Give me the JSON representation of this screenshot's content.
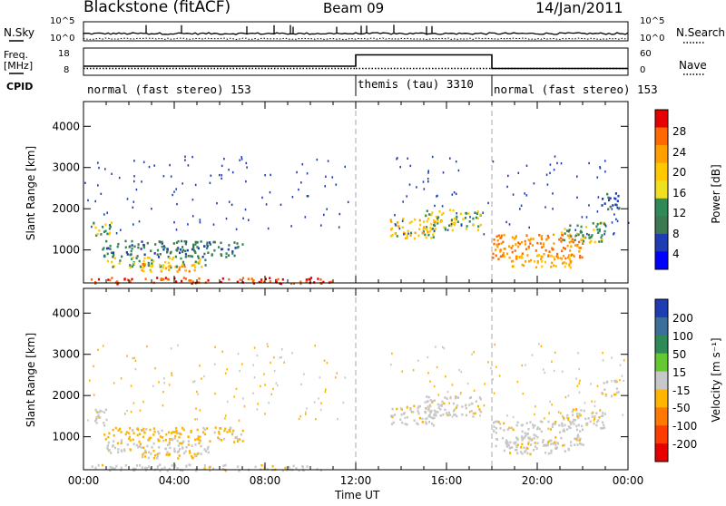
{
  "header": {
    "site": "Blackstone (fitACF)",
    "beam": "Beam 09",
    "date": "14/Jan/2011"
  },
  "top_panels": {
    "nsky_label": "N.Sky",
    "nsky_ticks": [
      "10^5",
      "10^0"
    ],
    "nsearch_label": "N.Search",
    "nsearch_ticks": [
      "10^5",
      "10^0"
    ],
    "freq_label": "Freq.",
    "freq_unit": "[MHz]",
    "freq_ticks": [
      "18",
      "8"
    ],
    "nave_label": "Nave",
    "nave_ticks": [
      "60",
      "0"
    ],
    "cpid_label": "CPID",
    "cpid_segments": [
      {
        "start_h": 0,
        "end_h": 12,
        "label": "normal (fast stereo) 153"
      },
      {
        "start_h": 12,
        "end_h": 18,
        "label": "themis (tau) 3310"
      },
      {
        "start_h": 18,
        "end_h": 24,
        "label": "normal (fast stereo) 153"
      }
    ]
  },
  "panels": {
    "power": {
      "ylabel": "Slant Range [km]",
      "cbar_label": "Power [dB]",
      "cbar_ticks": [
        "28",
        "24",
        "20",
        "16",
        "12",
        "8",
        "4"
      ],
      "cbar_colors": [
        "#e60000",
        "#ff6a00",
        "#ffa000",
        "#ffc800",
        "#f0e020",
        "#2e8b57",
        "#3c7850",
        "#1e3cb4",
        "#0000ff"
      ]
    },
    "velocity": {
      "ylabel": "Slant Range [km]",
      "cbar_label": "Velocity [m s⁻¹]",
      "cbar_ticks": [
        "200",
        "100",
        "50",
        "15",
        "-15",
        "-50",
        "-100",
        "-200"
      ],
      "cbar_colors": [
        "#1e3cb4",
        "#3c6e9c",
        "#2e8b57",
        "#64c832",
        "#c8c8c8",
        "#ffb400",
        "#ff7800",
        "#ff3c00",
        "#e60000"
      ],
      "ground_scatter_color": "#c8c8c8"
    }
  },
  "x_axis": {
    "label": "Time UT",
    "ticks": [
      "00:00",
      "04:00",
      "08:00",
      "12:00",
      "16:00",
      "20:00",
      "00:00"
    ]
  },
  "chart_data": {
    "type": "heatmap",
    "x_unit": "hours UT",
    "xlim": [
      0,
      24
    ],
    "ylim": [
      200,
      4600
    ],
    "y_ticks": [
      1000,
      2000,
      3000,
      4000
    ],
    "x_ticks": [
      0,
      4,
      8,
      12,
      16,
      20,
      24
    ],
    "mode_boundaries_h": [
      12,
      18
    ],
    "freq_MHz": [
      {
        "start_h": 0,
        "end_h": 12,
        "value": 10.5
      },
      {
        "start_h": 12,
        "end_h": 18,
        "value": 10.5
      },
      {
        "start_h": 18,
        "end_h": 24,
        "value": 10.5
      }
    ],
    "nave": [
      {
        "start_h": 0,
        "end_h": 12,
        "value": 20
      },
      {
        "start_h": 12,
        "end_h": 18,
        "value": 45
      },
      {
        "start_h": 18,
        "end_h": 24,
        "value": 15
      }
    ],
    "scatter_regions": [
      {
        "t0": 0.4,
        "t1": 1.2,
        "r0": 1300,
        "r1": 1700,
        "power_dB": 14,
        "velocity": -15,
        "ground": true
      },
      {
        "t0": 0.8,
        "t1": 7.0,
        "r0": 850,
        "r1": 1250,
        "power_dB": 8,
        "velocity": -40,
        "ground": false
      },
      {
        "t0": 1.0,
        "t1": 5.5,
        "r0": 600,
        "r1": 850,
        "power_dB": 14,
        "velocity": -15,
        "ground": true
      },
      {
        "t0": 2.5,
        "t1": 5.0,
        "r0": 500,
        "r1": 700,
        "power_dB": 20,
        "velocity": -40,
        "ground": false
      },
      {
        "t0": 0.3,
        "t1": 11.0,
        "r0": 200,
        "r1": 350,
        "power_dB": 26,
        "velocity": -15,
        "ground": true
      },
      {
        "t0": 13.5,
        "t1": 15.5,
        "r0": 1300,
        "r1": 1800,
        "power_dB": 16,
        "velocity": -15,
        "ground": true
      },
      {
        "t0": 15.0,
        "t1": 17.5,
        "r0": 1500,
        "r1": 2000,
        "power_dB": 14,
        "velocity": -15,
        "ground": true
      },
      {
        "t0": 18.0,
        "t1": 22.0,
        "r0": 800,
        "r1": 1400,
        "power_dB": 22,
        "velocity": -15,
        "ground": true
      },
      {
        "t0": 18.5,
        "t1": 21.5,
        "r0": 600,
        "r1": 900,
        "power_dB": 18,
        "velocity": -15,
        "ground": true
      },
      {
        "t0": 21.0,
        "t1": 23.0,
        "r0": 1200,
        "r1": 1700,
        "power_dB": 12,
        "velocity": -15,
        "ground": true
      },
      {
        "t0": 22.8,
        "t1": 23.6,
        "r0": 2000,
        "r1": 2400,
        "power_dB": 6,
        "velocity": -15,
        "ground": true
      }
    ]
  }
}
